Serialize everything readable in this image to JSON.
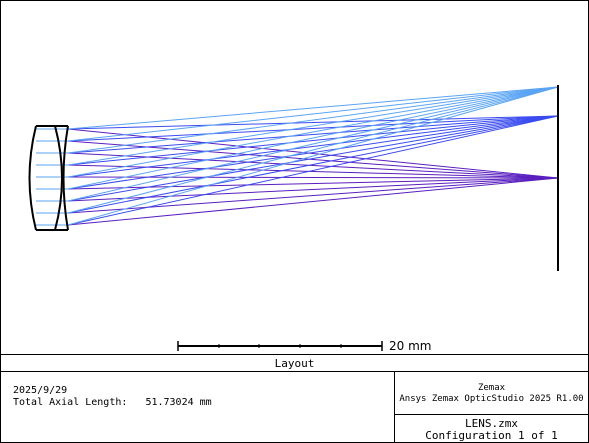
{
  "plot": {
    "title": "Layout",
    "scale_bar_label": "20 mm",
    "ray_colors": {
      "field_1": "#5a1fbf",
      "field_2": "#3a4cf0",
      "field_3": "#5aa4f4"
    }
  },
  "footer": {
    "date": "2025/9/29",
    "total_axial_length_label": "Total Axial Length:",
    "total_axial_length_value": "51.73024 mm",
    "company": "Zemax",
    "product": "Ansys Zemax OpticStudio 2025 R1.00",
    "file_name": "LENS.zmx",
    "configuration": "Configuration 1 of 1"
  }
}
